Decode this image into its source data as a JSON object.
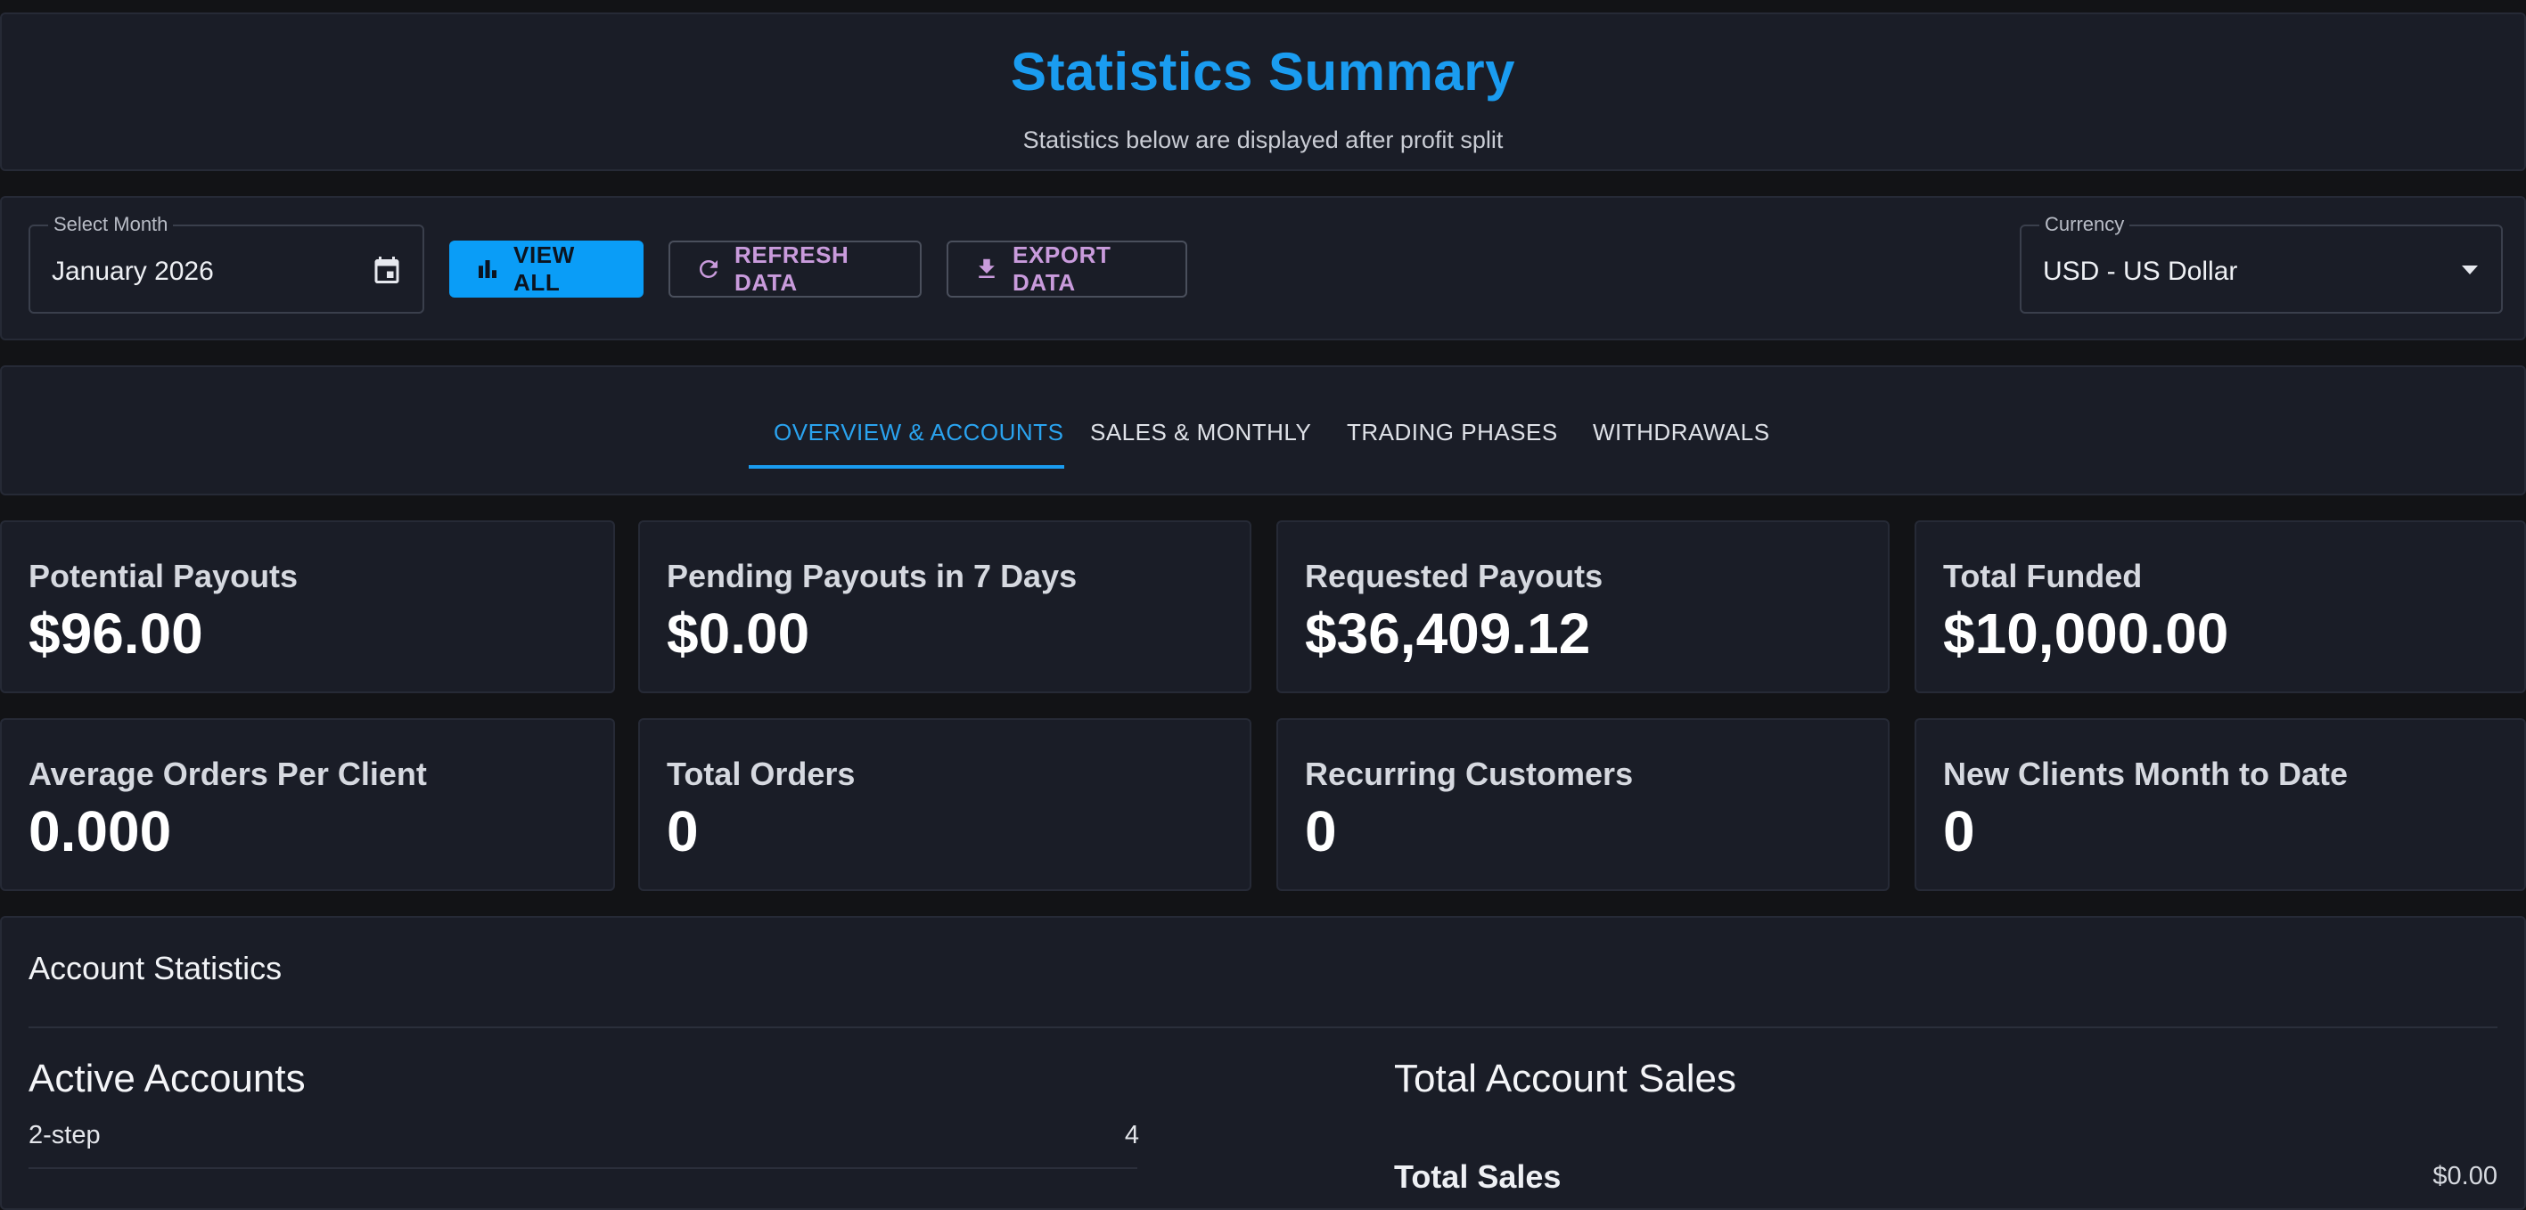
{
  "header": {
    "title": "Statistics Summary",
    "subtitle": "Statistics below are displayed after profit split"
  },
  "toolbar": {
    "month": {
      "label": "Select Month",
      "value": "January 2026"
    },
    "view_all_label": "VIEW ALL",
    "refresh_label": "REFRESH DATA",
    "export_label": "EXPORT DATA",
    "currency": {
      "label": "Currency",
      "value": "USD - US Dollar"
    }
  },
  "tabs": [
    {
      "label": "OVERVIEW & ACCOUNTS",
      "active": true
    },
    {
      "label": "SALES & MONTHLY",
      "active": false
    },
    {
      "label": "TRADING PHASES",
      "active": false
    },
    {
      "label": "WITHDRAWALS",
      "active": false
    }
  ],
  "stats": [
    {
      "label": "Potential Payouts",
      "value": "$96.00"
    },
    {
      "label": "Pending Payouts in 7 Days",
      "value": "$0.00"
    },
    {
      "label": "Requested Payouts",
      "value": "$36,409.12"
    },
    {
      "label": "Total Funded",
      "value": "$10,000.00"
    },
    {
      "label": "Average Orders Per Client",
      "value": "0.000"
    },
    {
      "label": "Total Orders",
      "value": "0"
    },
    {
      "label": "Recurring Customers",
      "value": "0"
    },
    {
      "label": "New Clients Month to Date",
      "value": "0"
    }
  ],
  "account_statistics": {
    "heading": "Account Statistics",
    "active_accounts": {
      "title": "Active Accounts",
      "rows": [
        {
          "label": "2-step",
          "value": "4"
        }
      ]
    },
    "total_account_sales": {
      "title": "Total Account Sales",
      "total_sales_label": "Total Sales",
      "total_sales_value": "$0.00"
    }
  },
  "colors": {
    "accent": "#1a9cf0",
    "background": "#121316",
    "panel": "#1a1d27",
    "outlined_button_text": "#c99bdc"
  }
}
